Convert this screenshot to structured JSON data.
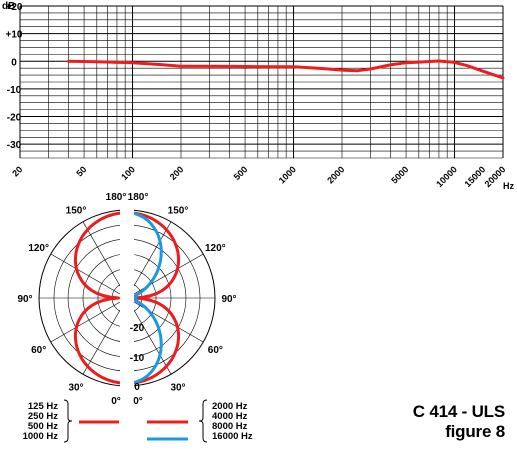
{
  "freq_chart": {
    "y_unit": "dB",
    "y_ticks": [
      {
        "value": 20,
        "label": "+20"
      },
      {
        "value": 10,
        "label": "+10"
      },
      {
        "value": 0,
        "label": "0"
      },
      {
        "value": -10,
        "label": "-10"
      },
      {
        "value": -20,
        "label": "-20"
      },
      {
        "value": -30,
        "label": "-30"
      }
    ],
    "x_ticks": [
      {
        "value": 20,
        "label": "20"
      },
      {
        "value": 50,
        "label": "50"
      },
      {
        "value": 100,
        "label": "100"
      },
      {
        "value": 200,
        "label": "200"
      },
      {
        "value": 500,
        "label": "500"
      },
      {
        "value": 1000,
        "label": "1000"
      },
      {
        "value": 2000,
        "label": "2000"
      },
      {
        "value": 5000,
        "label": "5000"
      },
      {
        "value": 10000,
        "label": "10000"
      },
      {
        "value": 15000,
        "label": "15000"
      },
      {
        "value": 20000,
        "label": "20000"
      }
    ],
    "x_unit": "Hz"
  },
  "chart_data": [
    {
      "type": "line",
      "x_scale": "log",
      "xlim": [
        20,
        20000
      ],
      "ylim": [
        -35,
        20
      ],
      "grid": true,
      "series": [
        {
          "color": "#ee1c1c",
          "x": [
            40,
            60,
            100,
            150,
            200,
            300,
            500,
            800,
            1000,
            1500,
            2000,
            2500,
            3000,
            4000,
            5000,
            6000,
            8000,
            10000,
            12000,
            15000,
            20000
          ],
          "y": [
            0,
            -0.2,
            -0.5,
            -1.2,
            -1.8,
            -1.8,
            -1.9,
            -2,
            -2,
            -2.6,
            -3.2,
            -3.4,
            -2.8,
            -1.3,
            -0.5,
            -0.3,
            0.1,
            -0.4,
            -1.6,
            -3.6,
            -6
          ]
        }
      ]
    },
    {
      "type": "polar",
      "angle_labels": [
        "0°",
        "30°",
        "60°",
        "90°",
        "120°",
        "150°",
        "180°"
      ],
      "radial_labels": [
        "0",
        "-10",
        "-20"
      ],
      "series": [
        {
          "legend": [
            "125 Hz",
            "250 Hz",
            "500 Hz",
            "1000 Hz"
          ],
          "color": "#ee1c1c",
          "side": "left",
          "pattern": "figure-8",
          "null_level_db": -25
        },
        {
          "legend": [
            "2000 Hz",
            "4000 Hz",
            "8000 Hz"
          ],
          "color": "#ee1c1c",
          "side": "right",
          "pattern": "figure-8",
          "null_level_db": -25
        },
        {
          "legend": [
            "16000 Hz"
          ],
          "color": "#1a9ae0",
          "side": "right",
          "pattern": "figure-8-narrow",
          "null_level_db": -25
        }
      ]
    }
  ],
  "model": "C 414 - ULS",
  "figure": "figure 8",
  "colors": {
    "curve": "#ee1c1c",
    "curve_hf": "#1a9ae0",
    "grid": "#000000"
  }
}
